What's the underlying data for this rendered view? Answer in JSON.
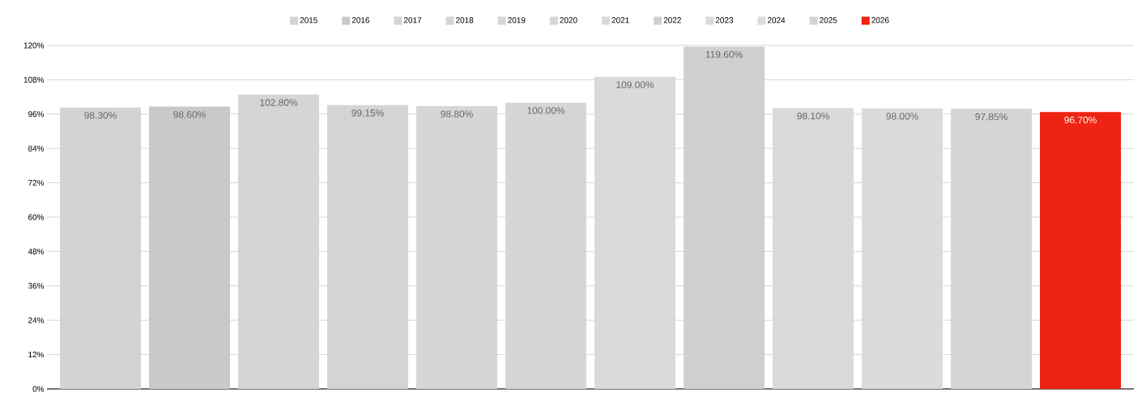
{
  "chart_data": {
    "type": "bar",
    "categories": [
      null
    ],
    "series": [
      {
        "name": "2015",
        "color": "#d3d3d3",
        "values": [
          98.3
        ],
        "value_labels": [
          "98.30%"
        ]
      },
      {
        "name": "2016",
        "color": "#c9c9c9",
        "values": [
          98.6
        ],
        "value_labels": [
          "98.60%"
        ]
      },
      {
        "name": "2017",
        "color": "#d5d5d5",
        "values": [
          102.8
        ],
        "value_labels": [
          "102.80%"
        ]
      },
      {
        "name": "2018",
        "color": "#d4d4d4",
        "values": [
          99.15
        ],
        "value_labels": [
          "99.15%"
        ]
      },
      {
        "name": "2019",
        "color": "#d6d6d6",
        "values": [
          98.8
        ],
        "value_labels": [
          "98.80%"
        ]
      },
      {
        "name": "2020",
        "color": "#d6d6d6",
        "values": [
          100.0
        ],
        "value_labels": [
          "100.00%"
        ]
      },
      {
        "name": "2021",
        "color": "#dadada",
        "values": [
          109.0
        ],
        "value_labels": [
          "109.00%"
        ]
      },
      {
        "name": "2022",
        "color": "#d0d0d0",
        "values": [
          119.6
        ],
        "value_labels": [
          "119.60%"
        ]
      },
      {
        "name": "2023",
        "color": "#d9d9d9",
        "values": [
          98.1
        ],
        "value_labels": [
          "98.10%"
        ]
      },
      {
        "name": "2024",
        "color": "#dbdbdb",
        "values": [
          98.0
        ],
        "value_labels": [
          "98.00%"
        ]
      },
      {
        "name": "2025",
        "color": "#d5d5d5",
        "values": [
          97.85
        ],
        "value_labels": [
          "97.85%"
        ]
      },
      {
        "name": "2026",
        "color": "#ee2311",
        "values": [
          96.7
        ],
        "value_labels": [
          "96.70%"
        ]
      }
    ],
    "ylim": [
      0,
      120
    ],
    "yticks": [
      {
        "value": 0,
        "label": "0%"
      },
      {
        "value": 12,
        "label": "12%"
      },
      {
        "value": 24,
        "label": "24%"
      },
      {
        "value": 36,
        "label": "36%"
      },
      {
        "value": 48,
        "label": "48%"
      },
      {
        "value": 60,
        "label": "60%"
      },
      {
        "value": 72,
        "label": "72%"
      },
      {
        "value": 84,
        "label": "84%"
      },
      {
        "value": 96,
        "label": "96%"
      },
      {
        "value": 108,
        "label": "108%"
      },
      {
        "value": 120,
        "label": "120%"
      }
    ],
    "grid": "y",
    "legend": "top"
  }
}
